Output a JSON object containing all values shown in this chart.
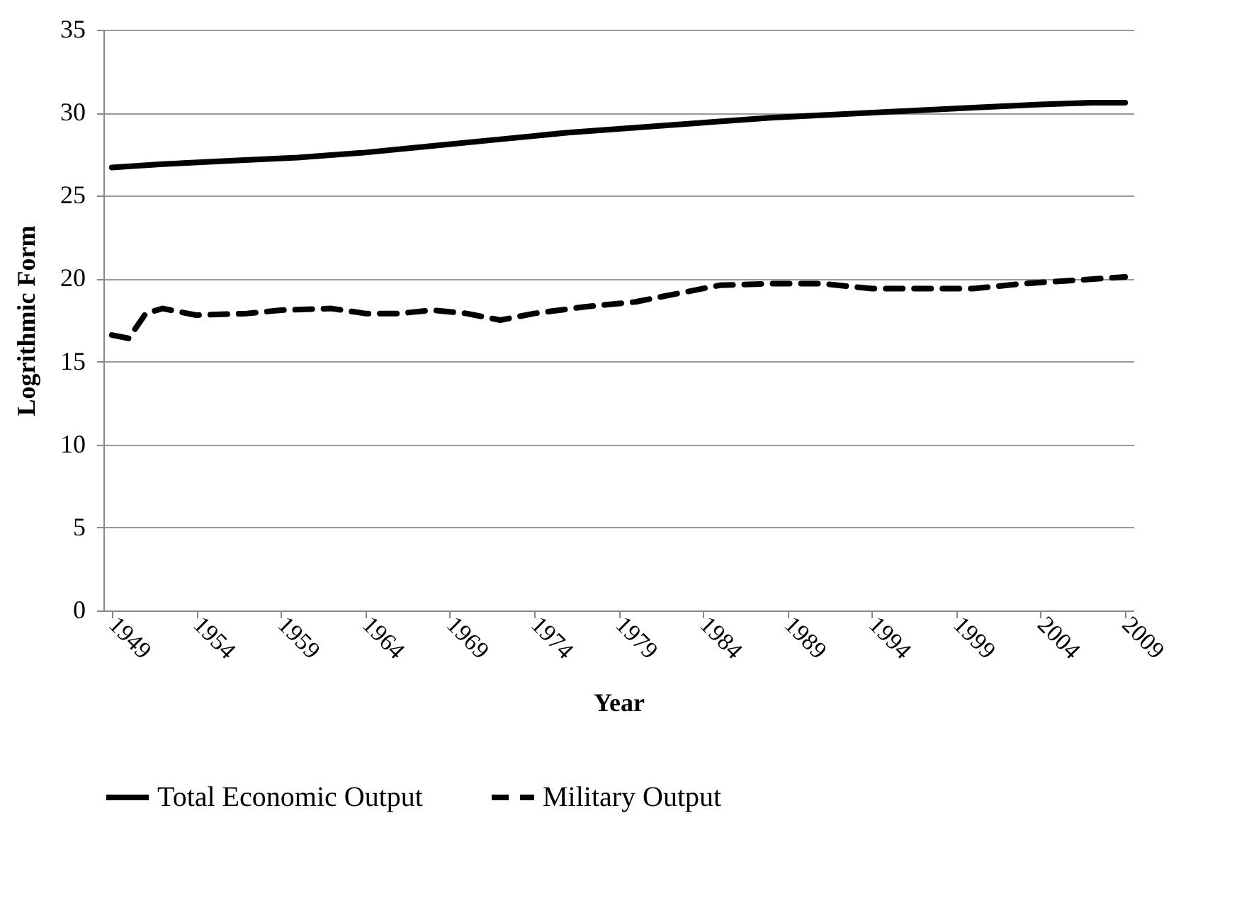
{
  "chart_data": {
    "type": "line",
    "xlabel": "Year",
    "ylabel": "Logrithmic Form",
    "xlim": [
      1948.5,
      2009.5
    ],
    "xticks": [
      1949,
      1954,
      1959,
      1964,
      1969,
      1974,
      1979,
      1984,
      1989,
      1994,
      1999,
      2004,
      2009
    ],
    "ylim": [
      0,
      35
    ],
    "yticks": [
      0,
      5,
      10,
      15,
      20,
      25,
      30,
      35
    ],
    "grid": "y",
    "legend": "bottom",
    "series": [
      {
        "name": "Total Economic Output",
        "color": "#000000",
        "line_style": "solid",
        "x": [
          1949,
          1952,
          1956,
          1960,
          1964,
          1968,
          1972,
          1976,
          1980,
          1984,
          1988,
          1992,
          1996,
          2000,
          2004,
          2007,
          2009
        ],
        "values": [
          26.7,
          26.9,
          27.1,
          27.3,
          27.6,
          28.0,
          28.4,
          28.8,
          29.1,
          29.4,
          29.7,
          29.9,
          30.1,
          30.3,
          30.5,
          30.6,
          30.6
        ]
      },
      {
        "name": "Military Output",
        "color": "#000000",
        "line_style": "dashed",
        "x": [
          1949,
          1950,
          1951,
          1952,
          1954,
          1957,
          1959,
          1962,
          1964,
          1966,
          1968,
          1970,
          1972,
          1974,
          1977,
          1980,
          1983,
          1985,
          1988,
          1991,
          1994,
          1997,
          2000,
          2003,
          2006,
          2009
        ],
        "values": [
          16.6,
          16.4,
          17.9,
          18.2,
          17.8,
          17.9,
          18.1,
          18.2,
          17.9,
          17.9,
          18.1,
          17.9,
          17.5,
          17.9,
          18.3,
          18.6,
          19.2,
          19.6,
          19.7,
          19.7,
          19.4,
          19.4,
          19.4,
          19.7,
          19.9,
          20.1
        ]
      }
    ]
  }
}
